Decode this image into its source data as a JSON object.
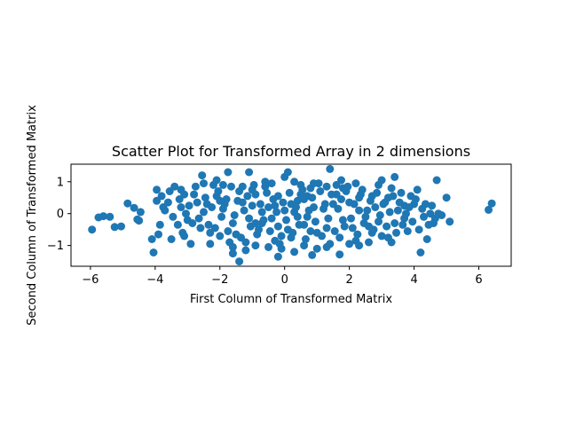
{
  "chart_data": {
    "type": "scatter",
    "title": "Scatter Plot for Transformed Array in 2 dimensions",
    "xlabel": "First Column of Transformed Matrix",
    "ylabel": "Second Column of Transformed Matrix",
    "xlim": [
      -6.6,
      7.0
    ],
    "ylim": [
      -1.65,
      1.55
    ],
    "xticks": [
      -6,
      -4,
      -2,
      0,
      2,
      4,
      6
    ],
    "yticks": [
      -1,
      0,
      1
    ],
    "grid": false,
    "color": "#1f77b4",
    "points": [
      [
        -5.95,
        -0.5
      ],
      [
        -5.75,
        -0.12
      ],
      [
        -5.6,
        -0.08
      ],
      [
        -5.4,
        -0.1
      ],
      [
        -5.25,
        -0.42
      ],
      [
        -5.05,
        -0.4
      ],
      [
        -4.85,
        0.32
      ],
      [
        -4.65,
        0.18
      ],
      [
        -4.55,
        -0.18
      ],
      [
        -4.45,
        0.05
      ],
      [
        -4.5,
        -0.22
      ],
      [
        -4.1,
        -0.8
      ],
      [
        -4.05,
        -1.22
      ],
      [
        -3.95,
        0.75
      ],
      [
        -3.9,
        -0.65
      ],
      [
        6.4,
        0.32
      ],
      [
        6.3,
        0.12
      ],
      [
        5.1,
        -0.25
      ],
      [
        5.0,
        0.5
      ],
      [
        4.85,
        -0.05
      ],
      [
        4.7,
        1.05
      ],
      [
        4.6,
        -0.3
      ],
      [
        4.4,
        -0.8
      ],
      [
        4.2,
        -1.22
      ],
      [
        4.1,
        0.75
      ],
      [
        1.4,
        1.4
      ],
      [
        3.4,
        1.15
      ],
      [
        -1.75,
        1.3
      ],
      [
        -1.1,
        1.3
      ],
      [
        0.1,
        1.3
      ],
      [
        -1.4,
        -1.5
      ],
      [
        -0.2,
        -1.35
      ],
      [
        0.85,
        -1.3
      ],
      [
        -1.6,
        -1.25
      ],
      [
        1.7,
        -1.28
      ],
      [
        -2.55,
        1.2
      ],
      [
        -2.1,
        1.05
      ],
      [
        0.0,
        1.15
      ],
      [
        1.75,
        1.05
      ],
      [
        3.0,
        1.05
      ],
      [
        -3.8,
        0.55
      ],
      [
        -3.6,
        0.35
      ],
      [
        -3.4,
        0.85
      ],
      [
        -3.2,
        0.2
      ],
      [
        -3.0,
        -0.2
      ],
      [
        -2.8,
        0.6
      ],
      [
        -2.6,
        -0.45
      ],
      [
        -2.4,
        0.3
      ],
      [
        -2.2,
        0.9
      ],
      [
        -2.0,
        -0.7
      ],
      [
        -1.8,
        0.45
      ],
      [
        -1.6,
        -0.3
      ],
      [
        -1.4,
        0.7
      ],
      [
        -1.2,
        -0.9
      ],
      [
        -1.0,
        0.25
      ],
      [
        -0.8,
        -0.5
      ],
      [
        -0.6,
        0.85
      ],
      [
        -0.4,
        -0.15
      ],
      [
        -0.2,
        0.55
      ],
      [
        0.2,
        -0.75
      ],
      [
        0.4,
        0.4
      ],
      [
        0.6,
        -0.35
      ],
      [
        0.8,
        0.8
      ],
      [
        1.0,
        -0.6
      ],
      [
        1.2,
        0.15
      ],
      [
        1.4,
        -0.95
      ],
      [
        1.6,
        0.6
      ],
      [
        1.8,
        -0.2
      ],
      [
        2.0,
        0.35
      ],
      [
        2.2,
        -0.85
      ],
      [
        2.4,
        0.75
      ],
      [
        2.6,
        -0.4
      ],
      [
        2.8,
        0.2
      ],
      [
        3.0,
        -0.7
      ],
      [
        3.2,
        0.5
      ],
      [
        3.4,
        -0.3
      ],
      [
        3.6,
        0.65
      ],
      [
        3.8,
        -0.55
      ],
      [
        4.0,
        0.3
      ],
      [
        4.3,
        -0.1
      ],
      [
        -3.5,
        -0.8
      ],
      [
        -3.1,
        0.6
      ],
      [
        -2.9,
        -0.95
      ],
      [
        -2.5,
        0.05
      ],
      [
        -2.3,
        -0.6
      ],
      [
        -1.9,
        0.15
      ],
      [
        -1.5,
        -0.65
      ],
      [
        -1.3,
        0.35
      ],
      [
        -0.9,
        0.6
      ],
      [
        -0.7,
        -0.3
      ],
      [
        -0.3,
        -0.85
      ],
      [
        0.3,
        0.05
      ],
      [
        0.5,
        0.9
      ],
      [
        0.7,
        -0.1
      ],
      [
        0.9,
        0.2
      ],
      [
        1.1,
        0.7
      ],
      [
        1.3,
        -0.45
      ],
      [
        1.5,
        0.3
      ],
      [
        1.9,
        0.7
      ],
      [
        2.1,
        -0.45
      ],
      [
        2.3,
        0.1
      ],
      [
        2.5,
        -0.1
      ],
      [
        2.7,
        0.55
      ],
      [
        2.9,
        -0.25
      ],
      [
        3.1,
        0.35
      ],
      [
        3.3,
        -0.9
      ],
      [
        3.5,
        0.1
      ],
      [
        3.7,
        -0.15
      ],
      [
        3.9,
        0.55
      ],
      [
        4.5,
        0.0
      ],
      [
        -3.7,
        0.1
      ],
      [
        -3.3,
        -0.35
      ],
      [
        -2.7,
        0.35
      ],
      [
        -2.1,
        0.55
      ],
      [
        -1.7,
        -0.9
      ],
      [
        -1.1,
        -0.15
      ],
      [
        -0.5,
        0.2
      ],
      [
        0.1,
        -0.5
      ],
      [
        0.7,
        0.55
      ],
      [
        1.3,
        0.85
      ],
      [
        1.7,
        -0.75
      ],
      [
        2.3,
        0.5
      ],
      [
        2.7,
        -0.6
      ],
      [
        3.3,
        0.8
      ],
      [
        3.7,
        0.25
      ],
      [
        -3.95,
        0.4
      ],
      [
        -3.85,
        -0.35
      ],
      [
        -3.75,
        0.2
      ],
      [
        -3.55,
        0.7
      ],
      [
        -3.45,
        -0.1
      ],
      [
        -3.25,
        0.45
      ],
      [
        -3.15,
        -0.6
      ],
      [
        -3.05,
        0.0
      ],
      [
        -2.95,
        0.25
      ],
      [
        -2.85,
        -0.3
      ],
      [
        -2.75,
        0.85
      ],
      [
        -2.65,
        -0.15
      ],
      [
        -2.45,
        0.5
      ],
      [
        -2.35,
        -0.35
      ],
      [
        -2.25,
        0.2
      ],
      [
        -2.15,
        -0.45
      ],
      [
        -2.05,
        0.7
      ],
      [
        -1.95,
        -0.1
      ],
      [
        -1.85,
        0.3
      ],
      [
        -1.75,
        -0.55
      ],
      [
        -1.65,
        0.85
      ],
      [
        -1.55,
        -0.05
      ],
      [
        -1.45,
        0.4
      ],
      [
        -1.35,
        -0.75
      ],
      [
        -1.25,
        0.1
      ],
      [
        -1.15,
        0.55
      ],
      [
        -1.05,
        -0.4
      ],
      [
        -0.95,
        0.9
      ],
      [
        -0.85,
        -0.65
      ],
      [
        -0.75,
        0.3
      ],
      [
        -0.65,
        -0.2
      ],
      [
        -0.55,
        0.65
      ],
      [
        -0.45,
        -0.55
      ],
      [
        -0.35,
        0.45
      ],
      [
        -0.25,
        0.05
      ],
      [
        -0.15,
        -0.95
      ],
      [
        -0.05,
        0.35
      ],
      [
        0.05,
        -0.2
      ],
      [
        0.15,
        0.65
      ],
      [
        0.25,
        -0.6
      ],
      [
        0.35,
        0.2
      ],
      [
        0.45,
        -0.35
      ],
      [
        0.55,
        0.75
      ],
      [
        0.65,
        -0.8
      ],
      [
        0.75,
        0.1
      ],
      [
        0.85,
        0.5
      ],
      [
        0.95,
        -0.25
      ],
      [
        1.05,
        0.95
      ],
      [
        1.15,
        -0.7
      ],
      [
        1.25,
        0.3
      ],
      [
        1.35,
        -0.15
      ],
      [
        1.45,
        0.6
      ],
      [
        1.55,
        -0.55
      ],
      [
        1.65,
        0.15
      ],
      [
        1.75,
        0.45
      ],
      [
        1.85,
        -0.4
      ],
      [
        1.95,
        0.85
      ],
      [
        2.05,
        -0.15
      ],
      [
        2.15,
        0.3
      ],
      [
        2.25,
        -0.65
      ],
      [
        2.35,
        0.6
      ],
      [
        2.45,
        -0.3
      ],
      [
        2.55,
        0.1
      ],
      [
        2.65,
        0.4
      ],
      [
        2.75,
        -0.5
      ],
      [
        2.85,
        0.65
      ],
      [
        2.95,
        -0.05
      ],
      [
        3.05,
        0.3
      ],
      [
        3.15,
        -0.4
      ],
      [
        3.25,
        0.05
      ],
      [
        3.35,
        0.55
      ],
      [
        3.45,
        -0.6
      ],
      [
        3.55,
        0.35
      ],
      [
        3.65,
        -0.35
      ],
      [
        3.75,
        0.0
      ],
      [
        3.85,
        0.2
      ],
      [
        3.95,
        -0.25
      ],
      [
        4.05,
        0.45
      ],
      [
        4.15,
        -0.5
      ],
      [
        4.25,
        0.15
      ],
      [
        4.35,
        0.3
      ],
      [
        4.45,
        -0.35
      ],
      [
        4.55,
        0.25
      ],
      [
        4.65,
        -0.15
      ],
      [
        4.75,
        0.0
      ],
      [
        -2.5,
        0.95
      ],
      [
        -1.9,
        0.9
      ],
      [
        -1.3,
        0.85
      ],
      [
        -0.6,
        1.0
      ],
      [
        0.3,
        1.0
      ],
      [
        0.9,
        0.95
      ],
      [
        1.6,
        0.9
      ],
      [
        2.2,
        0.95
      ],
      [
        2.9,
        0.9
      ],
      [
        -3.2,
        0.75
      ],
      [
        -2.3,
        -0.95
      ],
      [
        -1.6,
        -1.05
      ],
      [
        -0.9,
        -1.0
      ],
      [
        -0.1,
        -1.1
      ],
      [
        0.6,
        -1.0
      ],
      [
        1.3,
        -1.05
      ],
      [
        2.0,
        -0.95
      ],
      [
        2.6,
        -0.9
      ],
      [
        3.2,
        -0.75
      ],
      [
        -3.1,
        -0.7
      ],
      [
        -1.2,
        -1.15
      ],
      [
        0.3,
        -1.2
      ],
      [
        1.0,
        -1.1
      ],
      [
        -0.5,
        -1.05
      ],
      [
        2.3,
        -1.0
      ],
      [
        -0.4,
        0.95
      ],
      [
        -1.0,
        0.75
      ],
      [
        0.5,
        0.6
      ],
      [
        1.8,
        0.8
      ],
      [
        -2.0,
        0.4
      ],
      [
        -0.2,
        -0.4
      ],
      [
        0.0,
        0.1
      ],
      [
        0.2,
        0.3
      ],
      [
        -0.1,
        -0.7
      ],
      [
        0.4,
        -0.1
      ],
      [
        0.6,
        0.45
      ],
      [
        -0.7,
        0.05
      ],
      [
        -0.3,
        0.25
      ],
      [
        0.8,
        -0.55
      ],
      [
        -0.9,
        -0.3
      ]
    ]
  }
}
